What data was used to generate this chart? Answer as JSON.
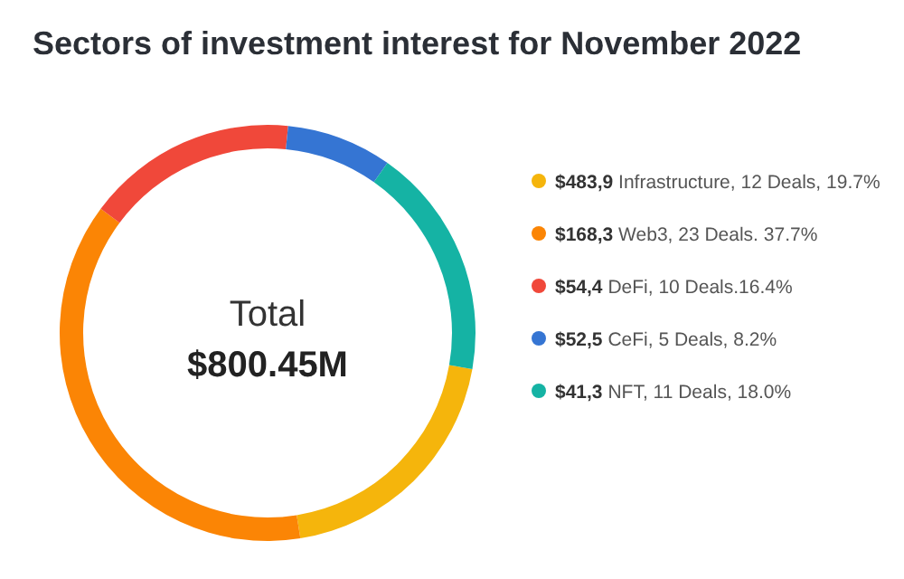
{
  "chart_data": {
    "type": "donut",
    "title": "Sectors of investment interest for November 2022",
    "categories": [
      "$483,9 Infrastructure, 12 Deals, 19.7%",
      "$168,3 Web3, 23 Deals. 37.7%",
      "$54,4 DeFi, 10 Deals.16.4%",
      "$52,5 CeFi, 5 Deals, 8.2%",
      "$41,3 NFT, 11 Deals, 18.0%"
    ],
    "values": [
      19.7,
      37.7,
      16.4,
      8.2,
      18.0
    ],
    "colors": [
      "#f5b50c",
      "#fb8505",
      "#f0483a",
      "#3575d3",
      "#15b3a4"
    ],
    "annotations": [
      "Total",
      "$800.45M"
    ],
    "legend": "right"
  }
}
